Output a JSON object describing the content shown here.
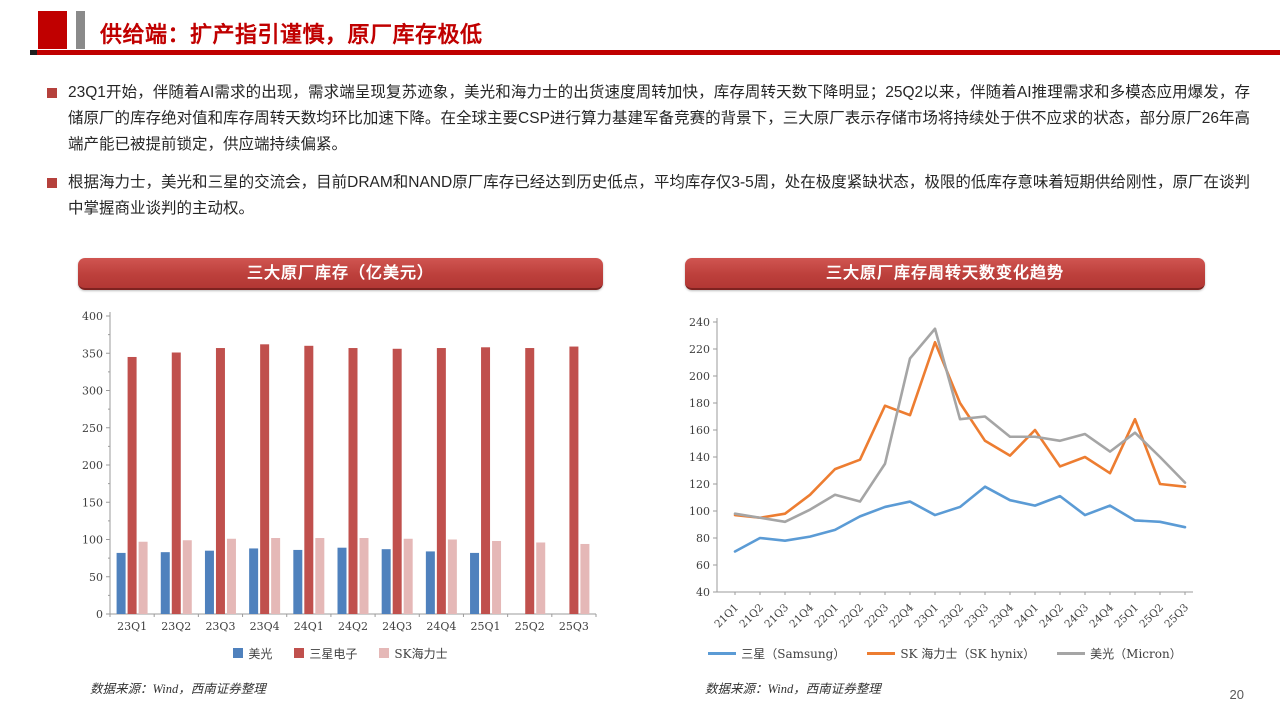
{
  "header": {
    "title": "供给端：扩产指引谨慎，原厂库存极低"
  },
  "bullets": [
    "23Q1开始，伴随着AI需求的出现，需求端呈现复苏迹象，美光和海力士的出货速度周转加快，库存周转天数下降明显；25Q2以来，伴随着AI推理需求和多模态应用爆发，存储原厂的库存绝对值和库存周转天数均环比加速下降。在全球主要CSP进行算力基建军备竞赛的背景下，三大原厂表示存储市场将持续处于供不应求的状态，部分原厂26年高端产能已被提前锁定，供应端持续偏紧。",
    "根据海力士，美光和三星的交流会，目前DRAM和NAND原厂库存已经达到历史低点，平均库存仅3-5周，处在极度紧缺状态，极限的低库存意味着短期供给刚性，原厂在谈判中掌握商业谈判的主动权。"
  ],
  "sources": {
    "left": "数据来源：Wind，西南证券整理",
    "right": "数据来源：Wind，西南证券整理"
  },
  "page_number": "20",
  "colors": {
    "accent_red": "#c00000",
    "banner_red": "#bd403c",
    "bullet_marker": "#b5413c",
    "axis": "#9b9b9b",
    "axis_label": "#3f3f3f"
  },
  "chart_data": [
    {
      "type": "bar",
      "title": "三大原厂库存（亿美元）",
      "categories": [
        "23Q1",
        "23Q2",
        "23Q3",
        "23Q4",
        "24Q1",
        "24Q2",
        "24Q3",
        "24Q4",
        "25Q1",
        "25Q2",
        "25Q3"
      ],
      "series": [
        {
          "name": "美光",
          "color": "#4f81bd",
          "values": [
            82,
            83,
            85,
            88,
            86,
            89,
            87,
            84,
            82,
            null,
            null
          ]
        },
        {
          "name": "三星电子",
          "color": "#c0504d",
          "values": [
            345,
            351,
            357,
            362,
            360,
            357,
            356,
            357,
            358,
            357,
            359
          ]
        },
        {
          "name": "SK海力士",
          "color": "#e5b8b7",
          "values": [
            97,
            99,
            101,
            102,
            102,
            102,
            101,
            100,
            98,
            96,
            94
          ]
        }
      ],
      "xlabel": "",
      "ylabel": "",
      "ylim": [
        0,
        400
      ],
      "ytick_step": 50,
      "grid": false,
      "legend_position": "bottom"
    },
    {
      "type": "line",
      "title": "三大原厂库存周转天数变化趋势",
      "categories": [
        "21Q1",
        "21Q2",
        "21Q3",
        "21Q4",
        "22Q1",
        "22Q2",
        "22Q3",
        "22Q4",
        "23Q1",
        "23Q2",
        "23Q3",
        "23Q4",
        "24Q1",
        "24Q2",
        "24Q3",
        "24Q4",
        "25Q1",
        "25Q2",
        "25Q3"
      ],
      "series": [
        {
          "name": "三星（Samsung）",
          "color": "#5b9bd5",
          "values": [
            70,
            80,
            78,
            81,
            86,
            96,
            103,
            107,
            97,
            103,
            118,
            108,
            104,
            111,
            97,
            104,
            93,
            92,
            88
          ]
        },
        {
          "name": "SK 海力士（SK hynix）",
          "color": "#ed7d31",
          "values": [
            97,
            95,
            98,
            112,
            131,
            138,
            178,
            171,
            225,
            180,
            152,
            141,
            160,
            133,
            140,
            128,
            168,
            120,
            118
          ]
        },
        {
          "name": "美光（Micron）",
          "color": "#a5a5a5",
          "values": [
            98,
            95,
            92,
            101,
            112,
            107,
            135,
            213,
            235,
            168,
            170,
            155,
            155,
            152,
            157,
            144,
            158,
            140,
            121
          ]
        }
      ],
      "xlabel": "",
      "ylabel": "",
      "ylim": [
        40,
        240
      ],
      "ytick_step": 20,
      "grid": false,
      "legend_position": "bottom"
    }
  ]
}
